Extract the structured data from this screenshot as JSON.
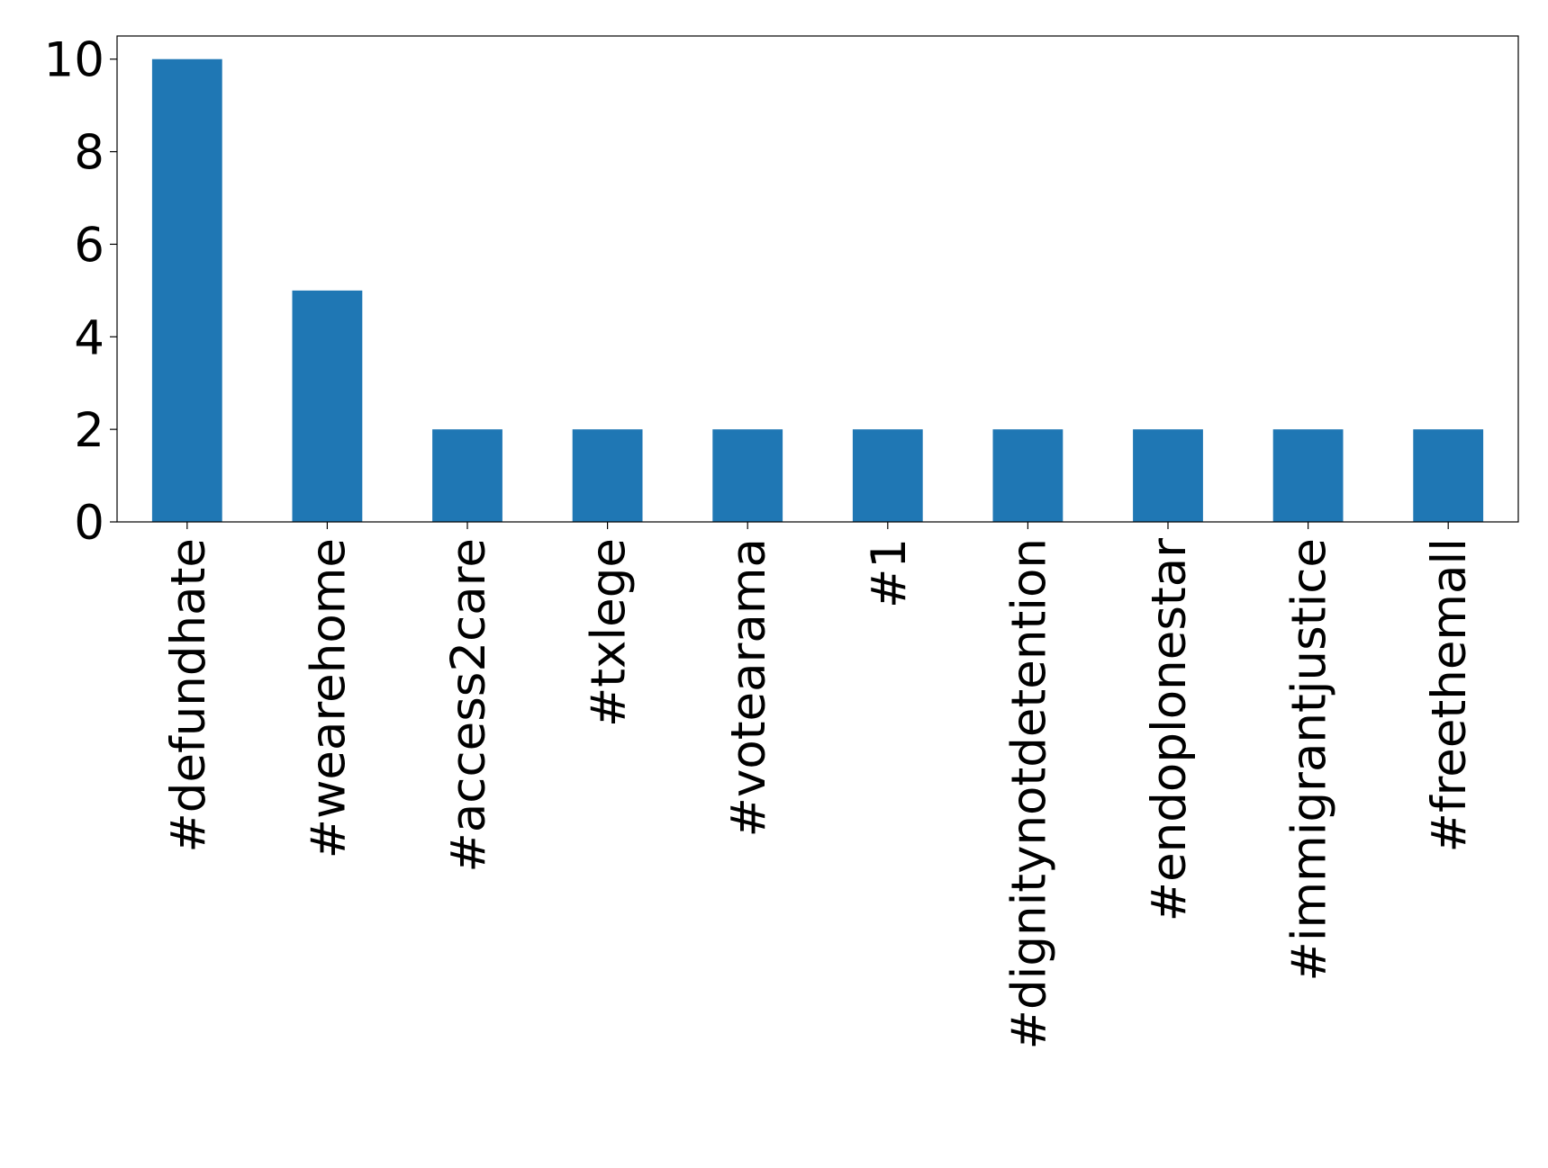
{
  "chart_data": {
    "type": "bar",
    "categories": [
      "#defundhate",
      "#wearehome",
      "#access2care",
      "#txlege",
      "#votearama",
      "#1",
      "#dignitynotdetention",
      "#endoplonestar",
      "#immigrantjustice",
      "#freethemall"
    ],
    "values": [
      10,
      5,
      2,
      2,
      2,
      2,
      2,
      2,
      2,
      2
    ],
    "color": "#1f77b4",
    "ylim": [
      0,
      10.5
    ],
    "yticks": [
      0,
      2,
      4,
      6,
      8,
      10
    ],
    "grid": false
  }
}
